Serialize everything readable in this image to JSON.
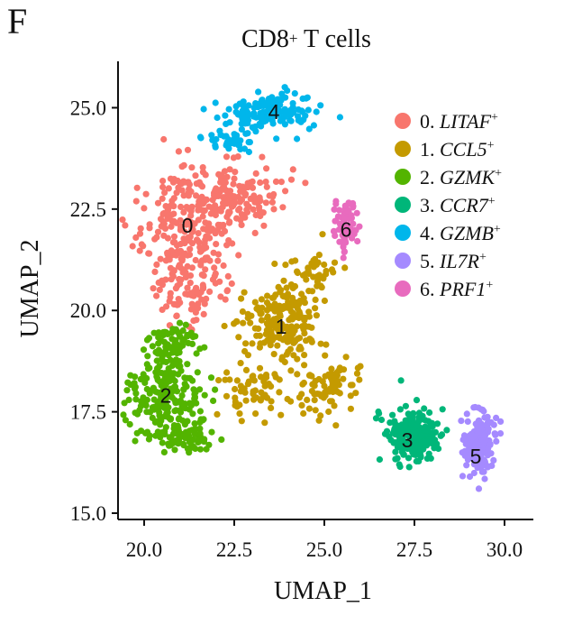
{
  "panel_label": "F",
  "chart_data": {
    "type": "scatter",
    "title": "CD8",
    "title_sup": "+",
    "title_suffix": " T cells",
    "xlabel": "UMAP_1",
    "ylabel": "UMAP_2",
    "xlim": [
      19.25,
      30.75
    ],
    "ylim": [
      14.8,
      26.1
    ],
    "xticks": [
      20.0,
      22.5,
      25.0,
      27.5,
      30.0
    ],
    "xtick_labels": [
      "20.0",
      "22.5",
      "25.0",
      "27.5",
      "30.0"
    ],
    "yticks": [
      15.0,
      17.5,
      20.0,
      22.5,
      25.0
    ],
    "ytick_labels": [
      "15.0",
      "17.5",
      "20.0",
      "22.5",
      "25.0"
    ],
    "grid": false,
    "legend_position": "right",
    "legend": [
      {
        "prefix": "0. ",
        "gene": "LITAF",
        "sup": "+"
      },
      {
        "prefix": "1. ",
        "gene": "CCL5",
        "sup": "+"
      },
      {
        "prefix": "2. ",
        "gene": "GZMK",
        "sup": "+"
      },
      {
        "prefix": "3. ",
        "gene": "CCR7",
        "sup": "+"
      },
      {
        "prefix": "4. ",
        "gene": "GZMB",
        "sup": "+"
      },
      {
        "prefix": "5. ",
        "gene": "IL7R",
        "sup": "+"
      },
      {
        "prefix": "6. ",
        "gene": "PRF1",
        "sup": "+"
      }
    ],
    "colors": [
      "#F8766D",
      "#C49A00",
      "#53B400",
      "#00B679",
      "#00B6EB",
      "#A58AFF",
      "#E86BBE"
    ],
    "clusters": [
      {
        "id": 0,
        "label": "0",
        "label_xy": [
          21.2,
          22.1
        ],
        "count": 430,
        "seed": 11,
        "regions": [
          {
            "cx": 21.2,
            "cy": 21.9,
            "sx": 1.0,
            "sy": 1.4,
            "w": 0.55
          },
          {
            "cx": 22.6,
            "cy": 22.8,
            "sx": 1.0,
            "sy": 0.7,
            "w": 0.3
          },
          {
            "cx": 21.3,
            "cy": 20.4,
            "sx": 0.8,
            "sy": 0.6,
            "w": 0.15
          }
        ]
      },
      {
        "id": 1,
        "label": "1",
        "label_xy": [
          23.8,
          19.6
        ],
        "count": 380,
        "seed": 23,
        "regions": [
          {
            "cx": 23.8,
            "cy": 19.7,
            "sx": 0.85,
            "sy": 0.8,
            "w": 0.55
          },
          {
            "cx": 25.0,
            "cy": 18.2,
            "sx": 0.8,
            "sy": 0.55,
            "w": 0.2
          },
          {
            "cx": 23.2,
            "cy": 17.9,
            "sx": 1.0,
            "sy": 0.5,
            "w": 0.15
          },
          {
            "cx": 24.7,
            "cy": 21.0,
            "sx": 0.6,
            "sy": 0.5,
            "w": 0.1
          }
        ]
      },
      {
        "id": 2,
        "label": "2",
        "label_xy": [
          20.6,
          17.9
        ],
        "count": 340,
        "seed": 37,
        "regions": [
          {
            "cx": 20.6,
            "cy": 17.9,
            "sx": 0.9,
            "sy": 0.75,
            "w": 0.6
          },
          {
            "cx": 21.1,
            "cy": 16.9,
            "sx": 0.8,
            "sy": 0.4,
            "w": 0.2
          },
          {
            "cx": 20.8,
            "cy": 19.2,
            "sx": 0.6,
            "sy": 0.4,
            "w": 0.2
          }
        ]
      },
      {
        "id": 3,
        "label": "3",
        "label_xy": [
          27.3,
          16.8
        ],
        "count": 210,
        "seed": 41,
        "regions": [
          {
            "cx": 27.4,
            "cy": 16.9,
            "sx": 0.6,
            "sy": 0.55,
            "w": 1.0
          }
        ]
      },
      {
        "id": 4,
        "label": "4",
        "label_xy": [
          23.6,
          24.9
        ],
        "count": 190,
        "seed": 53,
        "regions": [
          {
            "cx": 23.5,
            "cy": 24.9,
            "sx": 1.0,
            "sy": 0.38,
            "w": 0.8
          },
          {
            "cx": 22.4,
            "cy": 24.2,
            "sx": 0.5,
            "sy": 0.3,
            "w": 0.2
          }
        ]
      },
      {
        "id": 5,
        "label": "5",
        "label_xy": [
          29.2,
          16.4
        ],
        "count": 140,
        "seed": 67,
        "regions": [
          {
            "cx": 29.3,
            "cy": 16.7,
            "sx": 0.4,
            "sy": 0.7,
            "w": 1.0
          }
        ]
      },
      {
        "id": 6,
        "label": "6",
        "label_xy": [
          25.6,
          22.0
        ],
        "count": 70,
        "seed": 79,
        "regions": [
          {
            "cx": 25.6,
            "cy": 22.1,
            "sx": 0.28,
            "sy": 0.55,
            "w": 1.0
          }
        ]
      }
    ]
  }
}
